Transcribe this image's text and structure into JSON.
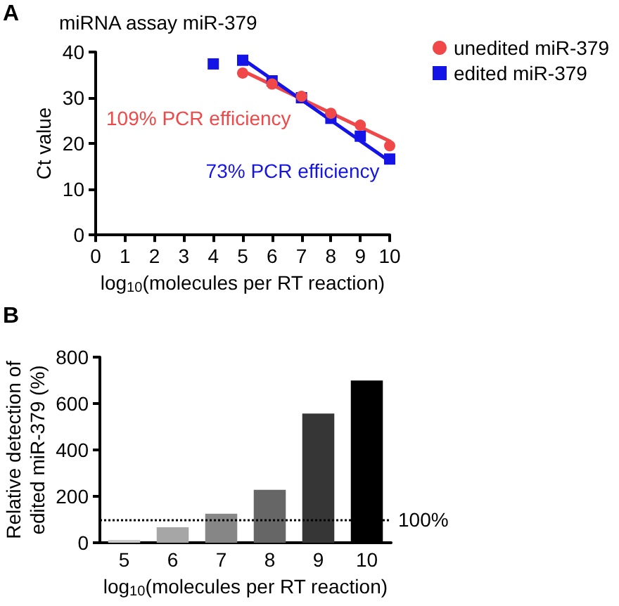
{
  "chart_data": [
    {
      "type": "scatter",
      "title": "miRNA assay miR-379",
      "xlabel": "log$_{10}$(molecules per RT reaction)",
      "ylabel": "Ct value",
      "xlim": [
        0,
        10
      ],
      "xticks": [
        0,
        1,
        2,
        3,
        4,
        5,
        6,
        7,
        8,
        9,
        10
      ],
      "ylim": [
        0,
        40
      ],
      "yticks": [
        0,
        10,
        20,
        30,
        40
      ],
      "grid": false,
      "legend": "top right",
      "annotations": [
        "A",
        "109% PCR efficiency",
        "73% PCR efficiency"
      ],
      "series": [
        {
          "name": "unedited miR-379",
          "color": "#f04848",
          "marker": "circle",
          "x": [
            5,
            6,
            7,
            8,
            9,
            10
          ],
          "values": [
            35.4,
            33,
            30.3,
            26.6,
            24,
            19.5
          ]
        },
        {
          "name": "edited miR-379",
          "color": "#1414e6",
          "marker": "square",
          "x": [
            4,
            5,
            6,
            7,
            8,
            9,
            10
          ],
          "values": [
            37.4,
            38.2,
            33.7,
            30,
            25.5,
            21.6,
            16.6
          ]
        },
        {
          "type": "line",
          "color": "#f04848",
          "marker": "none",
          "x": [
            5,
            10
          ],
          "values": [
            35.9,
            20.5
          ]
        },
        {
          "type": "line",
          "color": "#1414e6",
          "marker": "none",
          "x": [
            5,
            10
          ],
          "values": [
            38.5,
            16.1
          ]
        }
      ]
    },
    {
      "type": "bar",
      "xlabel": "log$_{10}$(molecules per RT reaction)",
      "ylabel": "Relative detection of\nedited miR-379 (%)",
      "categories": [
        "5",
        "6",
        "7",
        "8",
        "9",
        "10"
      ],
      "values": [
        12,
        67,
        125,
        228,
        557,
        699
      ],
      "colors": [
        "#c8c8c8",
        "#a6a6a6",
        "#868686",
        "#666666",
        "#363636",
        "#000000"
      ],
      "ylim": [
        0,
        800
      ],
      "yticks": [
        0,
        200,
        400,
        600,
        800
      ],
      "grid": false,
      "legend": false,
      "annotations": [
        "B"
      ],
      "ref_lines": [
        {
          "axis": "y",
          "value": 100,
          "label": "100%",
          "line_style": "dotted",
          "color": "#000000"
        }
      ]
    }
  ]
}
